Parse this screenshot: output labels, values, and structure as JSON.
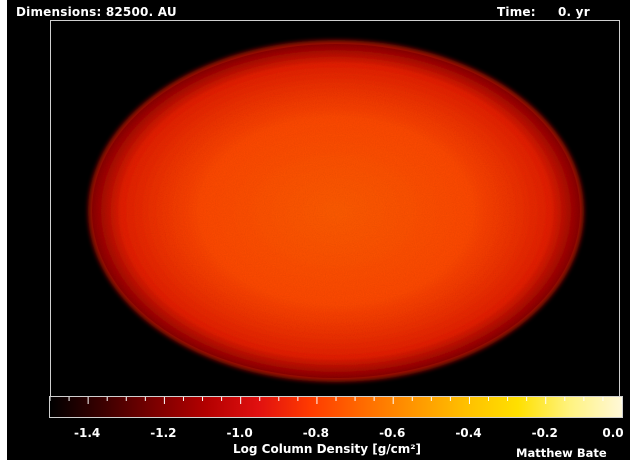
{
  "header": {
    "dimensions_label": "Dimensions: 82500. AU",
    "time_label": "Time:",
    "time_value": "0. yr"
  },
  "colorbar": {
    "tick_labels": [
      "-1.4",
      "-1.2",
      "-1.0",
      "-0.8",
      "-0.6",
      "-0.4",
      "-0.2",
      "0.0"
    ],
    "axis_label": "Log Column Density [g/cm²]",
    "range": [
      -1.5,
      0.0
    ],
    "colors": [
      "#000000",
      "#3a0000",
      "#7a0000",
      "#b30000",
      "#e01010",
      "#ff3a00",
      "#ff6a00",
      "#ff9600",
      "#ffc000",
      "#ffe000",
      "#fff380",
      "#fff8d8"
    ]
  },
  "image": {
    "colors": {
      "background": "#000000",
      "edge": "#8a0a00",
      "outer": "#e42200",
      "inner": "#ff4a00",
      "core": "#ff5c08"
    }
  },
  "credit": "Matthew Bate"
}
